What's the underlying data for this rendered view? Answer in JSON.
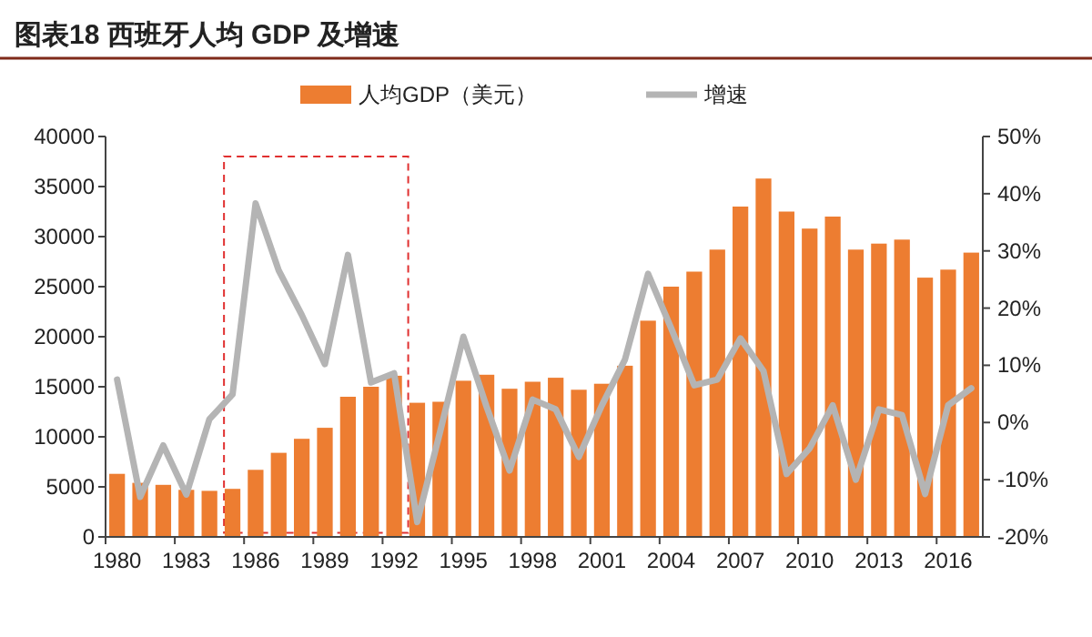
{
  "chart_data": {
    "type": "bar",
    "title": "图表18   西班牙人均 GDP 及增速",
    "categories": [
      "1980",
      null,
      null,
      "1983",
      null,
      null,
      "1986",
      null,
      null,
      "1989",
      null,
      null,
      "1992",
      null,
      null,
      "1995",
      null,
      null,
      "1998",
      null,
      null,
      "2001",
      null,
      null,
      "2004",
      null,
      null,
      "2007",
      null,
      null,
      "2010",
      null,
      null,
      "2013",
      null,
      null,
      "2016",
      null
    ],
    "series": [
      {
        "name": "人均GDP（美元）",
        "color": "#ed7d31",
        "values": [
          6300,
          5400,
          5200,
          4700,
          4600,
          4800,
          6700,
          8400,
          9800,
          10900,
          14000,
          15000,
          16100,
          13400,
          13500,
          15600,
          16200,
          14800,
          15500,
          15900,
          14700,
          15300,
          17100,
          21600,
          25000,
          26500,
          28700,
          33000,
          35800,
          32500,
          30800,
          32000,
          28700,
          29300,
          29700,
          25900,
          26700,
          28400
        ]
      },
      {
        "name": "增速",
        "type": "line",
        "axis": "y2",
        "color": "#b4b4b4",
        "values": [
          7.5,
          -13,
          -4,
          -12.6,
          0.6,
          4.9,
          38.3,
          26.6,
          18.8,
          10.2,
          29.3,
          7,
          8.6,
          -17.4,
          -1.5,
          15,
          2.8,
          -8.4,
          4,
          2.3,
          -6,
          3,
          11,
          26,
          16.5,
          6.5,
          7.5,
          14.7,
          9,
          -9,
          -4.5,
          3,
          -10,
          2.3,
          1.3,
          -12.5,
          3,
          6
        ]
      }
    ],
    "ylim": [
      0,
      40000
    ],
    "yticks": [
      0,
      5000,
      10000,
      15000,
      20000,
      25000,
      30000,
      35000,
      40000
    ],
    "y2lim": [
      -20,
      50
    ],
    "y2ticks": [
      {
        "value": -20,
        "label": "-20%"
      },
      {
        "value": -10,
        "label": "-10%"
      },
      {
        "value": 0,
        "label": "0%"
      },
      {
        "value": 10,
        "label": "10%"
      },
      {
        "value": 20,
        "label": "20%"
      },
      {
        "value": 30,
        "label": "30%"
      },
      {
        "value": 40,
        "label": "40%"
      },
      {
        "value": 50,
        "label": "50%"
      }
    ],
    "legend": "top",
    "grid": false
  }
}
